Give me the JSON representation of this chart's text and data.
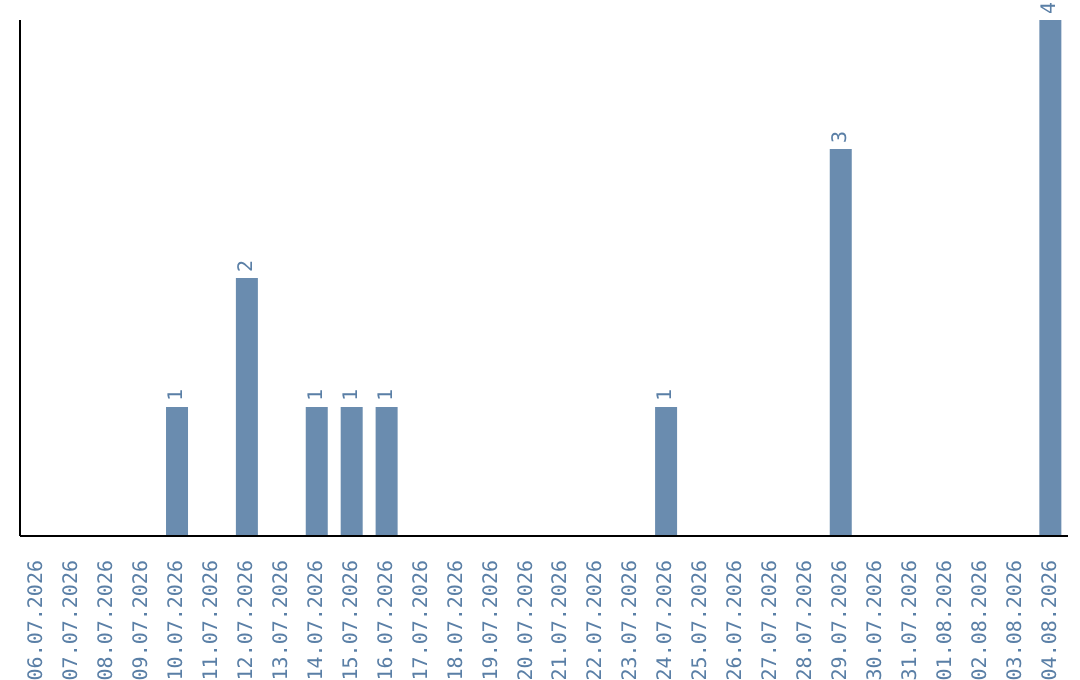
{
  "chart_data": {
    "type": "bar",
    "categories": [
      "06.07.2026",
      "07.07.2026",
      "08.07.2026",
      "09.07.2026",
      "10.07.2026",
      "11.07.2026",
      "12.07.2026",
      "13.07.2026",
      "14.07.2026",
      "15.07.2026",
      "16.07.2026",
      "17.07.2026",
      "18.07.2026",
      "19.07.2026",
      "20.07.2026",
      "21.07.2026",
      "22.07.2026",
      "23.07.2026",
      "24.07.2026",
      "25.07.2026",
      "26.07.2026",
      "27.07.2026",
      "28.07.2026",
      "29.07.2026",
      "30.07.2026",
      "31.07.2026",
      "01.08.2026",
      "02.08.2026",
      "03.08.2026",
      "04.08.2026"
    ],
    "values": [
      0,
      0,
      0,
      0,
      1,
      0,
      2,
      0,
      1,
      1,
      1,
      0,
      0,
      0,
      0,
      0,
      0,
      0,
      1,
      0,
      0,
      0,
      0,
      3,
      0,
      0,
      0,
      0,
      0,
      4
    ],
    "value_labels": [
      null,
      null,
      null,
      null,
      "1",
      null,
      "2",
      null,
      "1",
      "1",
      "1",
      null,
      null,
      null,
      null,
      null,
      null,
      null,
      "1",
      null,
      null,
      null,
      null,
      "3",
      null,
      null,
      null,
      null,
      null,
      "4"
    ],
    "color": "#6a8caf",
    "tick_labels": "x",
    "grid": false,
    "legend": false
  }
}
